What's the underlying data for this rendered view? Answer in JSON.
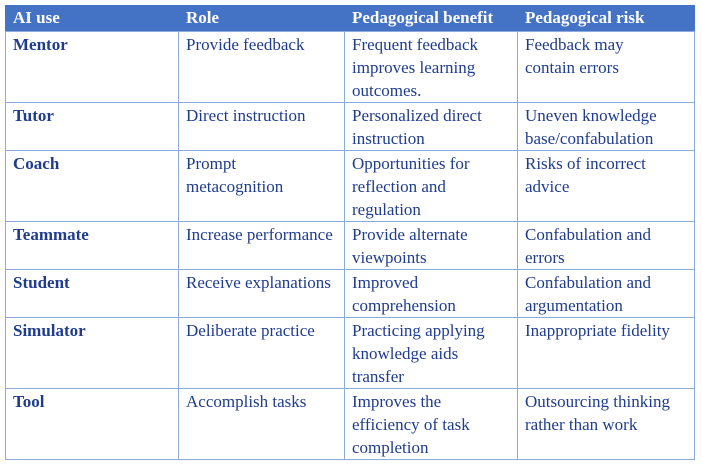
{
  "colors": {
    "header_bg": "#4472C4",
    "header_text": "#FFFFFF",
    "body_text": "#1F3C8E",
    "border": "#8EAADB",
    "page_bg": "#FFFFFF"
  },
  "table": {
    "headers": [
      "AI use",
      "Role",
      "Pedagogical benefit",
      "Pedagogical risk"
    ],
    "rows": [
      {
        "use": "Mentor",
        "role": "Provide feedback",
        "benefit": "Frequent feedback\nimproves learning\noutcomes.",
        "risk": "Feedback may\ncontain errors"
      },
      {
        "use": "Tutor",
        "role": "Direct instruction",
        "benefit": "Personalized direct\ninstruction",
        "risk": "Uneven knowledge\nbase/confabulation"
      },
      {
        "use": "Coach",
        "role": "Prompt\nmetacognition",
        "benefit": "Opportunities for\nreflection and\nregulation",
        "risk": "Risks of incorrect\nadvice"
      },
      {
        "use": "Teammate",
        "role": "Increase performance",
        "benefit": "Provide alternate\nviewpoints",
        "risk": "Confabulation and\nerrors"
      },
      {
        "use": "Student",
        "role": "Receive explanations",
        "benefit": "Improved\ncomprehension",
        "risk": "Confabulation and\nargumentation"
      },
      {
        "use": "Simulator",
        "role": "Deliberate practice",
        "benefit": "Practicing applying\nknowledge aids\ntransfer",
        "risk": "Inappropriate fidelity"
      },
      {
        "use": "Tool",
        "role": "Accomplish tasks",
        "benefit": "Improves the\nefficiency of task\ncompletion",
        "risk": "Outsourcing thinking\nrather than work"
      }
    ]
  }
}
